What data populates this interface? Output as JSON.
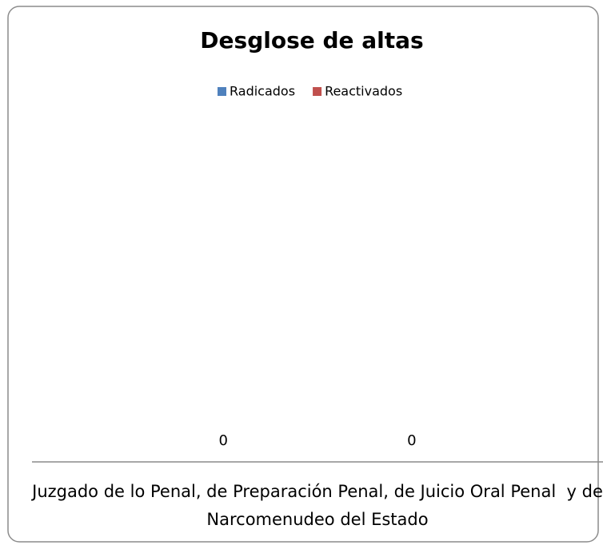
{
  "chart_data": {
    "type": "bar",
    "title": "Desglose de altas",
    "categories": [
      "Juzgado de lo Penal, de Preparación Penal, de Juicio Oral Penal  y de Narcomenudeo del Estado"
    ],
    "series": [
      {
        "name": "Radicados",
        "color": "#4f81bd",
        "values": [
          0
        ]
      },
      {
        "name": "Reactivados",
        "color": "#c0504d",
        "values": [
          0
        ]
      }
    ]
  }
}
